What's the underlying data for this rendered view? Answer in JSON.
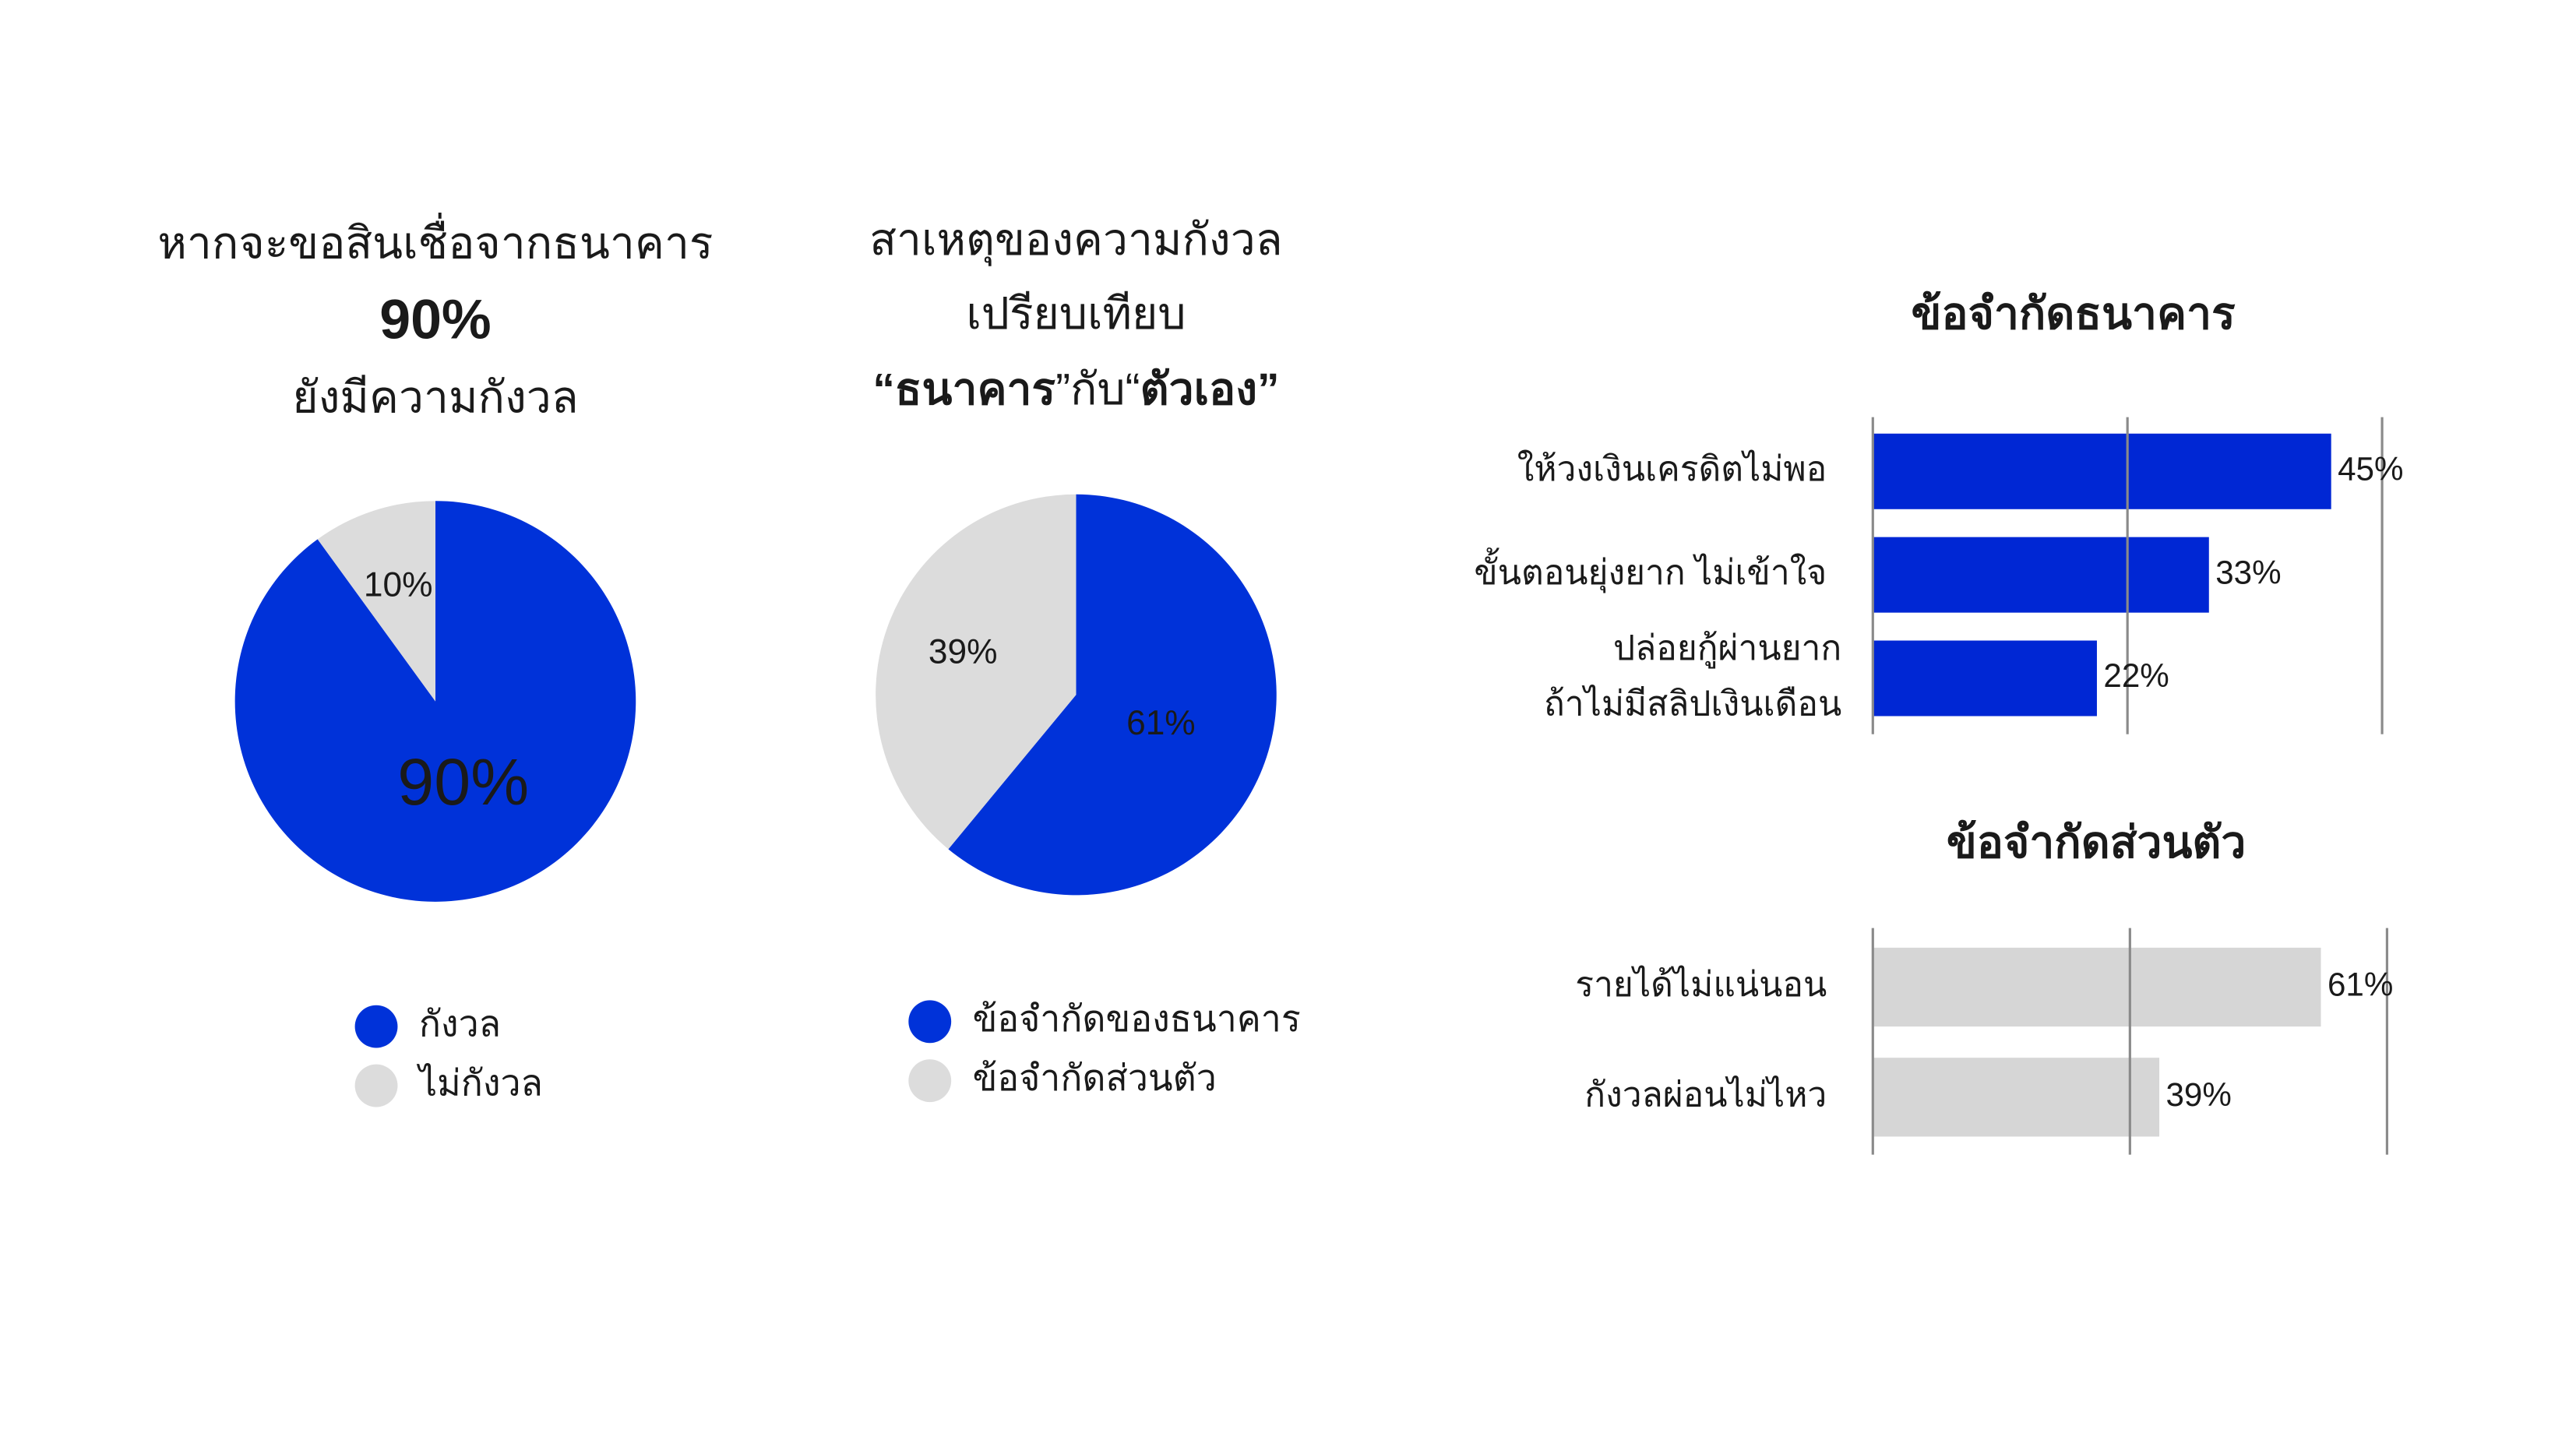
{
  "chart_data": [
    {
      "type": "pie",
      "title_lines": [
        "หากจะขอสินเชื่อจากธนาคาร",
        "90%",
        "ยังมีความกังวล"
      ],
      "categories": [
        "กังวล",
        "ไม่กังวล"
      ],
      "values": [
        90,
        10
      ],
      "value_labels": [
        "90%",
        "10%"
      ],
      "colors": [
        "#0032d9",
        "#dcdcdc"
      ],
      "label_colors": [
        "#ffffff",
        "#0032d9"
      ]
    },
    {
      "type": "pie",
      "title_lines": [
        "สาเหตุของความกังวล",
        "เปรียบเทียบ",
        [
          "“ธนาคาร",
          "”กับ“",
          "ตัวเอง”"
        ]
      ],
      "categories": [
        "ข้อจำกัดของธนาคาร",
        "ข้อจำกัดส่วนตัว"
      ],
      "values": [
        61,
        39
      ],
      "value_labels": [
        "61%",
        "39%"
      ],
      "colors": [
        "#0032d9",
        "#dcdcdc"
      ],
      "label_colors": [
        "#ffffff",
        "#0032d9"
      ]
    },
    {
      "type": "bar",
      "orientation": "horizontal",
      "title": "ข้อจำกัดธนาคาร",
      "categories": [
        "ให้วงเงินเครดิตไม่พอ",
        "ขั้นตอนยุ่งยาก ไม่เข้าใจ",
        [
          "ปล่อยกู้ผ่านยาก",
          "ถ้าไม่มีสลิปเงินเดือน"
        ]
      ],
      "values": [
        45,
        33,
        22
      ],
      "value_labels": [
        "45%",
        "33%",
        "22%"
      ],
      "color": "#0027d4",
      "xlim": [
        0,
        50
      ],
      "xticks": [
        0,
        25,
        50
      ],
      "grid": true
    },
    {
      "type": "bar",
      "orientation": "horizontal",
      "title": "ข้อจำกัดส่วนตัว",
      "categories": [
        "รายได้ไม่แน่นอน",
        "กังวลผ่อนไม่ไหว"
      ],
      "values": [
        61,
        39
      ],
      "value_labels": [
        "61%",
        "39%"
      ],
      "color": "#d6d6d6",
      "xlim": [
        0,
        70
      ],
      "xticks": [
        0,
        35,
        70
      ],
      "grid": true
    }
  ]
}
